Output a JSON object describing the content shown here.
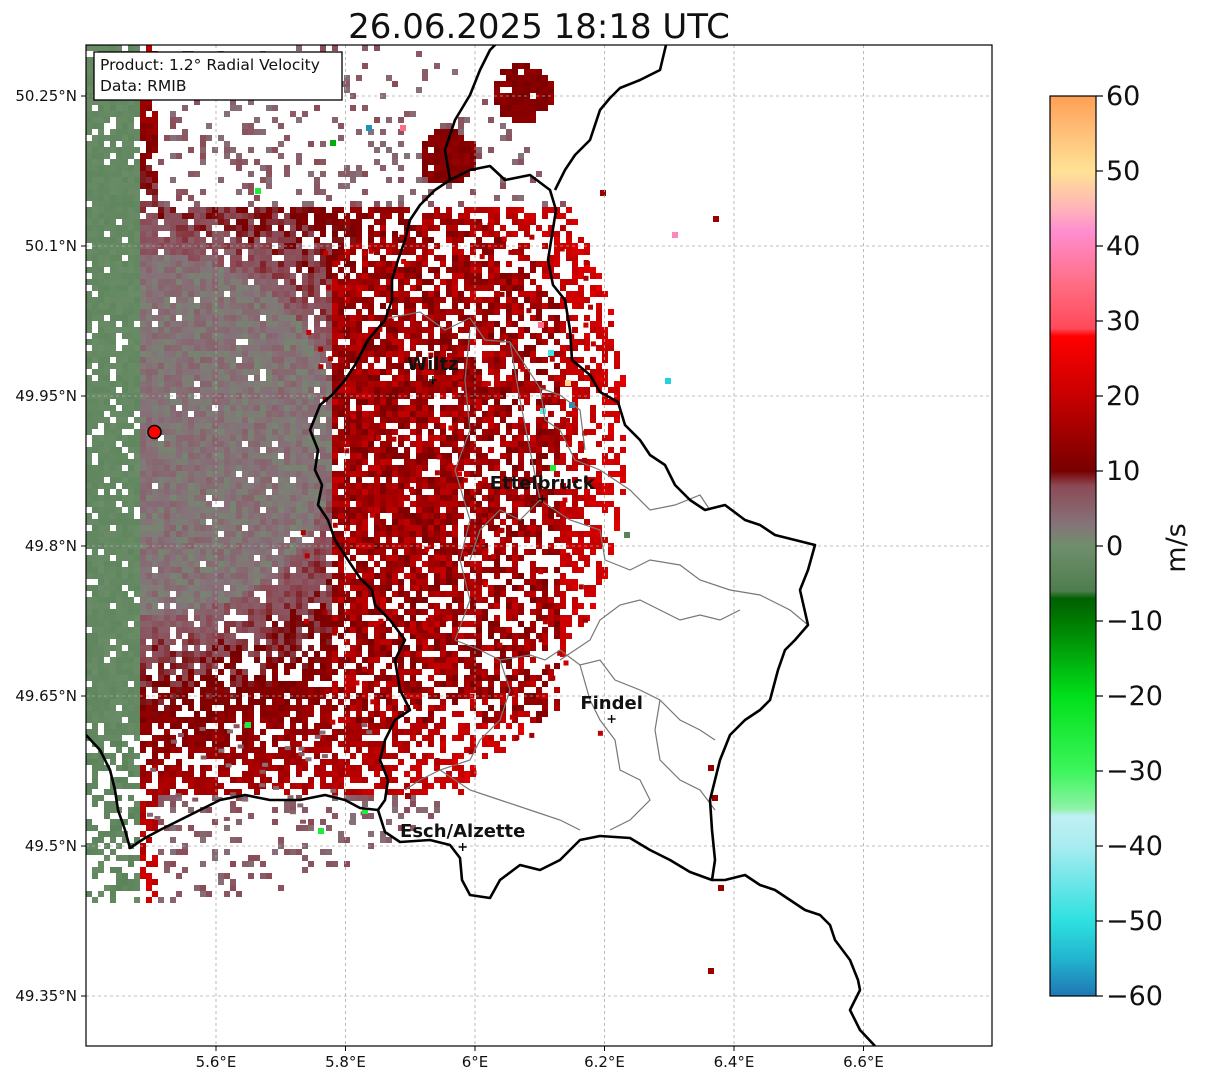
{
  "title": "26.06.2025 18:18 UTC",
  "info": {
    "product": "Product: 1.2° Radial Velocity",
    "data": "Data: RMIB"
  },
  "map": {
    "lon_range": [
      5.4,
      6.8
    ],
    "lat_range": [
      49.3,
      50.3
    ],
    "lon_ticks": [
      {
        "value": 5.6,
        "label": "5.6°E"
      },
      {
        "value": 5.8,
        "label": "5.8°E"
      },
      {
        "value": 6.0,
        "label": "6°E"
      },
      {
        "value": 6.2,
        "label": "6.2°E"
      },
      {
        "value": 6.4,
        "label": "6.4°E"
      },
      {
        "value": 6.6,
        "label": "6.6°E"
      }
    ],
    "lat_ticks": [
      {
        "value": 50.25,
        "label": "50.25°N"
      },
      {
        "value": 50.1,
        "label": "50.1°N"
      },
      {
        "value": 49.95,
        "label": "49.95°N"
      },
      {
        "value": 49.8,
        "label": "49.8°N"
      },
      {
        "value": 49.65,
        "label": "49.65°N"
      },
      {
        "value": 49.5,
        "label": "49.5°N"
      },
      {
        "value": 49.35,
        "label": "49.35°N"
      }
    ],
    "grid": true,
    "radar_site": {
      "lon": 5.505,
      "lat": 49.914
    }
  },
  "cities": [
    {
      "name": "Wiltz",
      "lon": 5.935,
      "lat": 49.966
    },
    {
      "name": "Ettelbruck",
      "lon": 6.104,
      "lat": 49.847
    },
    {
      "name": "Findel",
      "lon": 6.211,
      "lat": 49.627
    },
    {
      "name": "Esch/Alzette",
      "lon": 5.981,
      "lat": 49.499
    }
  ],
  "colorbar": {
    "label": "m/s",
    "min": -60,
    "max": 60,
    "ticks": [
      {
        "value": 60,
        "label": "60"
      },
      {
        "value": 50,
        "label": "50"
      },
      {
        "value": 40,
        "label": "40"
      },
      {
        "value": 30,
        "label": "30"
      },
      {
        "value": 20,
        "label": "20"
      },
      {
        "value": 10,
        "label": "10"
      },
      {
        "value": 0,
        "label": "0"
      },
      {
        "value": -10,
        "label": "−10"
      },
      {
        "value": -20,
        "label": "−20"
      },
      {
        "value": -30,
        "label": "−30"
      },
      {
        "value": -40,
        "label": "−40"
      },
      {
        "value": -50,
        "label": "−50"
      },
      {
        "value": -60,
        "label": "−60"
      }
    ],
    "stops": [
      {
        "value": -60,
        "color": "#1f77b4"
      },
      {
        "value": -55,
        "color": "#22b5cf"
      },
      {
        "value": -50,
        "color": "#2ee0e0"
      },
      {
        "value": -40,
        "color": "#a8ecf0"
      },
      {
        "value": -36,
        "color": "#c0f0f4"
      },
      {
        "value": -35,
        "color": "#8ef2a6"
      },
      {
        "value": -30,
        "color": "#3df55c"
      },
      {
        "value": -20,
        "color": "#00e01a"
      },
      {
        "value": -10,
        "color": "#007a00"
      },
      {
        "value": -7,
        "color": "#006000"
      },
      {
        "value": -6,
        "color": "#4f7d4f"
      },
      {
        "value": 0,
        "color": "#6f8f6c"
      },
      {
        "value": 3,
        "color": "#86727a"
      },
      {
        "value": 8,
        "color": "#8c4a55"
      },
      {
        "value": 10,
        "color": "#780000"
      },
      {
        "value": 20,
        "color": "#c80000"
      },
      {
        "value": 28,
        "color": "#ff0000"
      },
      {
        "value": 29,
        "color": "#ff4a5a"
      },
      {
        "value": 35,
        "color": "#ff6e84"
      },
      {
        "value": 42,
        "color": "#ff8ed0"
      },
      {
        "value": 45,
        "color": "#ffb4b8"
      },
      {
        "value": 50,
        "color": "#ffe294"
      },
      {
        "value": 55,
        "color": "#ffc07a"
      },
      {
        "value": 60,
        "color": "#ff9f55"
      }
    ]
  }
}
